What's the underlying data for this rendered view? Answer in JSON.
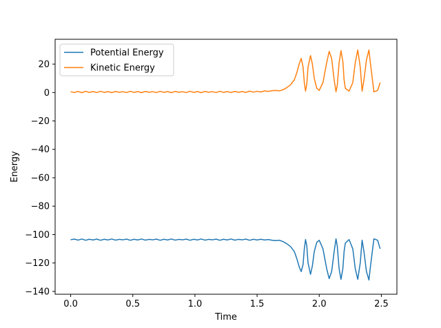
{
  "chart_data": {
    "type": "line",
    "title": "",
    "xlabel": "Time",
    "ylabel": "Energy",
    "xlim": [
      -0.125,
      2.625
    ],
    "ylim": [
      -142,
      37.5
    ],
    "xticks": [
      0.0,
      0.5,
      1.0,
      1.5,
      2.0,
      2.5
    ],
    "xtick_labels": [
      "0.0",
      "0.5",
      "1.0",
      "1.5",
      "2.0",
      "2.5"
    ],
    "yticks": [
      20,
      0,
      -20,
      -40,
      -60,
      -80,
      -100,
      -120,
      -140
    ],
    "ytick_labels": [
      "20",
      "0",
      "−20",
      "−40",
      "−60",
      "−80",
      "−100",
      "−120",
      "−140"
    ],
    "grid": false,
    "legend_position": "upper-left",
    "series": [
      {
        "name": "Potential Energy",
        "color": "#1f77b4",
        "x": [
          0.0,
          0.03,
          0.06,
          0.09,
          0.12,
          0.15,
          0.18,
          0.21,
          0.24,
          0.27,
          0.3,
          0.33,
          0.36,
          0.39,
          0.42,
          0.45,
          0.48,
          0.51,
          0.54,
          0.57,
          0.6,
          0.63,
          0.66,
          0.69,
          0.72,
          0.75,
          0.78,
          0.81,
          0.84,
          0.87,
          0.9,
          0.93,
          0.96,
          0.99,
          1.02,
          1.05,
          1.08,
          1.11,
          1.14,
          1.17,
          1.2,
          1.23,
          1.26,
          1.29,
          1.32,
          1.35,
          1.38,
          1.41,
          1.44,
          1.47,
          1.5,
          1.53,
          1.56,
          1.59,
          1.62,
          1.65,
          1.68,
          1.71,
          1.74,
          1.77,
          1.8,
          1.82,
          1.84,
          1.855,
          1.87,
          1.88,
          1.89,
          1.9,
          1.91,
          1.93,
          1.945,
          1.96,
          1.98,
          2.0,
          2.03,
          2.06,
          2.08,
          2.1,
          2.12,
          2.135,
          2.145,
          2.16,
          2.175,
          2.19,
          2.2,
          2.21,
          2.24,
          2.27,
          2.29,
          2.31,
          2.33,
          2.345,
          2.36,
          2.38,
          2.4,
          2.41,
          2.44,
          2.47,
          2.49
        ],
        "y": [
          -103.6,
          -103.2,
          -103.9,
          -103.1,
          -104.0,
          -103.3,
          -103.8,
          -103.2,
          -104.0,
          -103.3,
          -103.8,
          -103.1,
          -103.9,
          -103.4,
          -103.7,
          -103.2,
          -104.0,
          -103.3,
          -103.8,
          -103.1,
          -103.9,
          -103.4,
          -103.7,
          -103.2,
          -104.0,
          -103.3,
          -103.8,
          -103.1,
          -103.9,
          -103.4,
          -103.7,
          -103.2,
          -104.0,
          -103.3,
          -103.8,
          -103.1,
          -103.9,
          -103.4,
          -103.7,
          -103.2,
          -104.0,
          -103.3,
          -103.8,
          -103.1,
          -103.9,
          -103.4,
          -103.7,
          -103.2,
          -104.0,
          -103.3,
          -103.8,
          -103.3,
          -103.8,
          -103.5,
          -104.0,
          -104.2,
          -104.0,
          -105.0,
          -106.5,
          -108.5,
          -112.0,
          -117.0,
          -123.0,
          -126.0,
          -121.0,
          -110.0,
          -103.5,
          -108.0,
          -120.0,
          -128.0,
          -122.0,
          -112.0,
          -105.5,
          -104.0,
          -110.0,
          -124.0,
          -131.0,
          -126.0,
          -112.0,
          -103.0,
          -108.0,
          -124.0,
          -131.5,
          -124.0,
          -112.0,
          -106.0,
          -103.5,
          -110.0,
          -124.0,
          -131.5,
          -120.0,
          -104.0,
          -112.0,
          -126.0,
          -132.0,
          -124.0,
          -103.0,
          -104.0,
          -110.0
        ]
      },
      {
        "name": "Kinetic Energy",
        "color": "#ff7f0e",
        "x": [
          0.0,
          0.03,
          0.06,
          0.09,
          0.12,
          0.15,
          0.18,
          0.21,
          0.24,
          0.27,
          0.3,
          0.33,
          0.36,
          0.39,
          0.42,
          0.45,
          0.48,
          0.51,
          0.54,
          0.57,
          0.6,
          0.63,
          0.66,
          0.69,
          0.72,
          0.75,
          0.78,
          0.81,
          0.84,
          0.87,
          0.9,
          0.93,
          0.96,
          0.99,
          1.02,
          1.05,
          1.08,
          1.11,
          1.14,
          1.17,
          1.2,
          1.23,
          1.26,
          1.29,
          1.32,
          1.35,
          1.38,
          1.41,
          1.44,
          1.47,
          1.5,
          1.53,
          1.56,
          1.59,
          1.62,
          1.65,
          1.68,
          1.71,
          1.74,
          1.77,
          1.8,
          1.82,
          1.84,
          1.855,
          1.87,
          1.88,
          1.89,
          1.9,
          1.91,
          1.93,
          1.945,
          1.96,
          1.98,
          2.0,
          2.03,
          2.06,
          2.08,
          2.1,
          2.12,
          2.135,
          2.145,
          2.16,
          2.175,
          2.19,
          2.2,
          2.21,
          2.24,
          2.27,
          2.29,
          2.31,
          2.33,
          2.345,
          2.36,
          2.38,
          2.4,
          2.41,
          2.44,
          2.47,
          2.49
        ],
        "y": [
          0.6,
          0.0,
          0.8,
          -0.1,
          0.9,
          0.1,
          0.7,
          0.0,
          0.9,
          0.1,
          0.7,
          -0.1,
          0.8,
          0.2,
          0.6,
          0.0,
          0.9,
          0.1,
          0.7,
          -0.1,
          0.8,
          0.2,
          0.6,
          0.0,
          0.9,
          0.1,
          0.7,
          -0.1,
          0.8,
          0.2,
          0.6,
          0.0,
          0.9,
          0.1,
          0.7,
          -0.1,
          0.8,
          0.2,
          0.6,
          0.0,
          0.9,
          0.1,
          0.7,
          0.0,
          0.8,
          0.2,
          0.7,
          0.1,
          1.0,
          0.3,
          0.9,
          0.4,
          1.1,
          0.8,
          1.3,
          1.5,
          1.2,
          2.0,
          3.5,
          5.5,
          9.0,
          14.0,
          20.5,
          24.0,
          18.0,
          7.0,
          1.0,
          6.0,
          18.0,
          26.0,
          20.0,
          10.0,
          3.0,
          1.5,
          7.0,
          21.0,
          29.0,
          24.0,
          9.0,
          0.5,
          5.0,
          21.0,
          29.5,
          22.0,
          9.0,
          3.0,
          1.0,
          7.0,
          21.0,
          30.0,
          18.0,
          1.0,
          9.0,
          23.0,
          30.0,
          22.0,
          0.5,
          1.5,
          7.0
        ]
      }
    ]
  }
}
